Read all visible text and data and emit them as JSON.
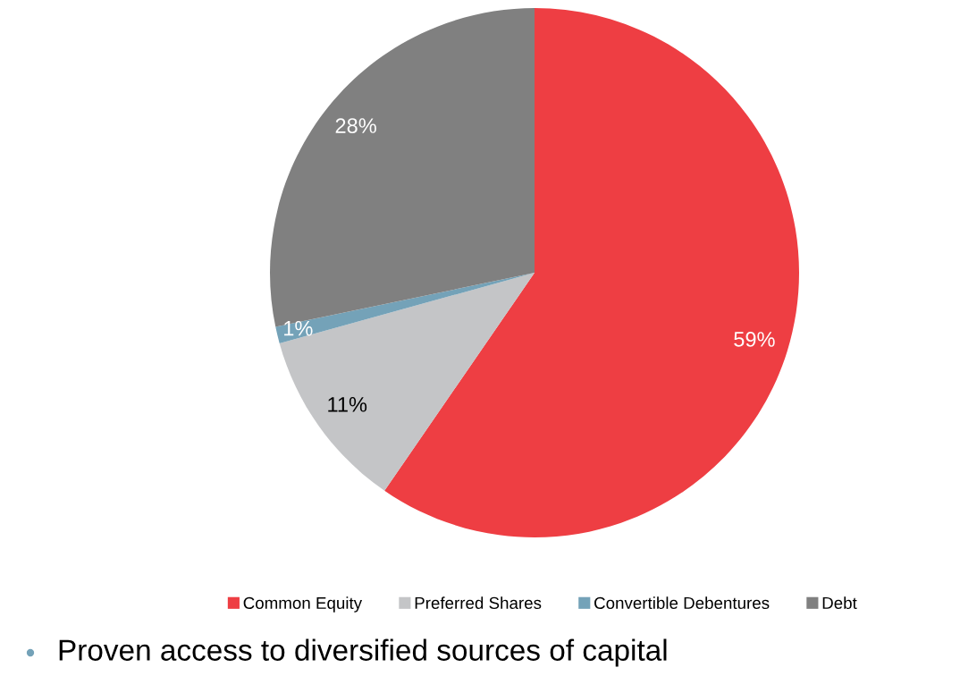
{
  "chart_data": {
    "type": "pie",
    "categories": [
      "Common Equity",
      "Preferred Shares",
      "Convertible Debentures",
      "Debt"
    ],
    "values": [
      59,
      11,
      1,
      28
    ],
    "colors": [
      "#ee3e43",
      "#c4c5c7",
      "#74a2b8",
      "#808080"
    ],
    "value_labels": [
      "59%",
      "11%",
      "1%",
      "28%"
    ],
    "legend": "bottom",
    "annotations": [
      "Proven access to diversified sources of capital"
    ]
  }
}
